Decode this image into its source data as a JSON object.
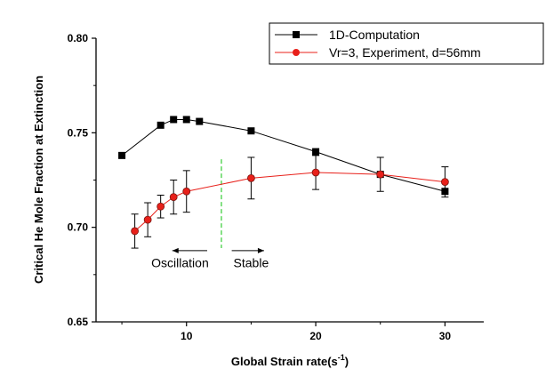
{
  "chart_data": {
    "type": "line",
    "title": "",
    "xlabel": "Global Strain rate(s",
    "xlabel_sup": "-1",
    "xlabel_close": ")",
    "ylabel": "Critical He Mole Fraction at Extinction",
    "xlim": [
      3,
      33
    ],
    "ylim": [
      0.65,
      0.8
    ],
    "x_ticks": [
      10,
      20,
      30
    ],
    "x_tick_labels": [
      "10",
      "20",
      "30"
    ],
    "y_ticks": [
      0.65,
      0.7,
      0.75,
      0.8
    ],
    "y_tick_labels": [
      "0.65",
      "0.70",
      "0.75",
      "0.80"
    ],
    "grid": false,
    "legend_position": "top-right",
    "series": [
      {
        "name": "1D-Computation",
        "color": "#000000",
        "marker": "square",
        "x": [
          5,
          8,
          9,
          10,
          11,
          15,
          20,
          25,
          30
        ],
        "y": [
          0.738,
          0.754,
          0.757,
          0.757,
          0.756,
          0.751,
          0.74,
          0.728,
          0.719
        ]
      },
      {
        "name": "Vr=3, Experiment, d=56mm",
        "color": "#e8201a",
        "marker": "circle",
        "x": [
          6,
          7,
          8,
          9,
          10,
          15,
          20,
          25,
          30
        ],
        "y": [
          0.698,
          0.704,
          0.711,
          0.716,
          0.719,
          0.726,
          0.729,
          0.728,
          0.724
        ],
        "err": [
          0.009,
          0.009,
          0.006,
          0.009,
          0.011,
          0.011,
          0.009,
          0.009,
          0.008
        ]
      }
    ],
    "divider": {
      "x": 12.7,
      "y_range": [
        0.689,
        0.736
      ],
      "color": "#33cc33"
    },
    "annotations": [
      {
        "text": "Oscillation",
        "x": 9.5,
        "y": 0.679
      },
      {
        "text": "Stable",
        "x": 15.0,
        "y": 0.679
      }
    ],
    "arrows": [
      {
        "x_from": 11.6,
        "x_to": 8.9,
        "y": 0.6877
      },
      {
        "x_from": 13.5,
        "x_to": 16.0,
        "y": 0.6877
      }
    ]
  }
}
